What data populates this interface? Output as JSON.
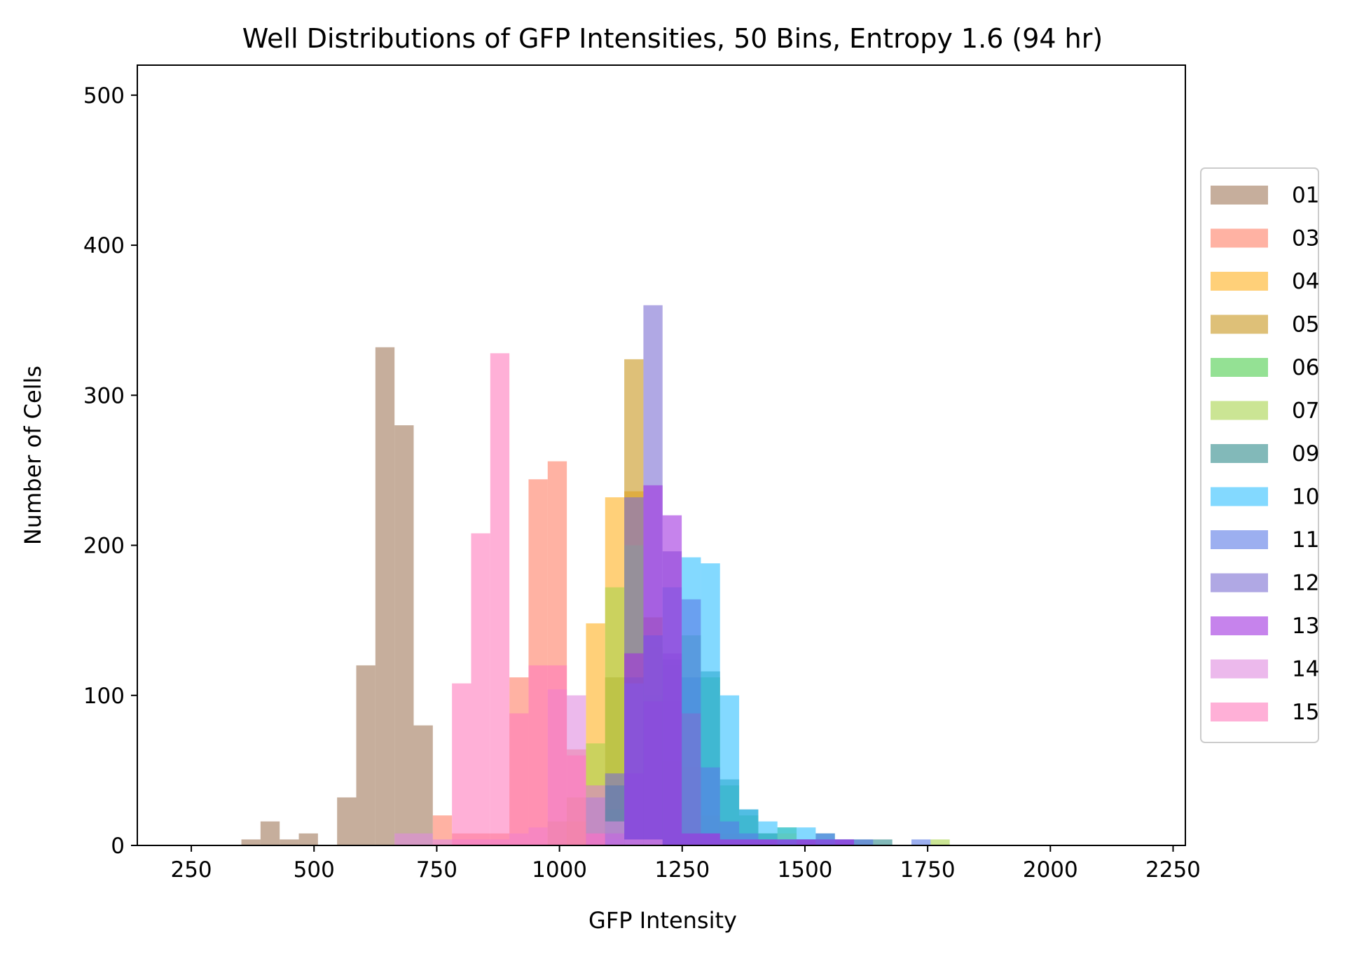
{
  "chart_data": {
    "type": "bar",
    "subtype": "overlaid-histogram",
    "title": "Well Distributions of GFP Intensities, 50 Bins, Entropy 1.6 (94 hr)",
    "xlabel": "GFP Intensity",
    "ylabel": "Number of Cells",
    "xlim": [
      140,
      2275
    ],
    "ylim": [
      0,
      520
    ],
    "xticks": [
      250,
      500,
      750,
      1000,
      1250,
      1500,
      1750,
      2000,
      2250
    ],
    "yticks": [
      0,
      100,
      200,
      300,
      400,
      500
    ],
    "bin_width": 39,
    "legend_position": "right",
    "opacity": 0.6,
    "series": [
      {
        "name": "01",
        "color": "#a0785a",
        "bins": [
          [
            352,
            4
          ],
          [
            391,
            16
          ],
          [
            430,
            4
          ],
          [
            469,
            8
          ],
          [
            547,
            32
          ],
          [
            586,
            120
          ],
          [
            625,
            332
          ],
          [
            664,
            280
          ],
          [
            703,
            80
          ]
        ]
      },
      {
        "name": "03",
        "color": "#ff7f66",
        "bins": [
          [
            742,
            20
          ],
          [
            781,
            8
          ],
          [
            820,
            8
          ],
          [
            859,
            8
          ],
          [
            898,
            112
          ],
          [
            937,
            244
          ],
          [
            976,
            256
          ],
          [
            1015,
            64
          ],
          [
            1054,
            8
          ]
        ]
      },
      {
        "name": "04",
        "color": "#ffb020",
        "bins": [
          [
            1015,
            16
          ],
          [
            1054,
            148
          ],
          [
            1093,
            232
          ],
          [
            1132,
            236
          ],
          [
            1171,
            104
          ],
          [
            1210,
            56
          ],
          [
            1249,
            8
          ]
        ]
      },
      {
        "name": "05",
        "color": "#c8961e",
        "bins": [
          [
            976,
            16
          ],
          [
            1015,
            32
          ],
          [
            1054,
            40
          ],
          [
            1093,
            112
          ],
          [
            1132,
            324
          ],
          [
            1171,
            152
          ],
          [
            1210,
            36
          ],
          [
            1249,
            4
          ]
        ]
      },
      {
        "name": "06",
        "color": "#4ccd4c",
        "bins": [
          [
            1054,
            8
          ],
          [
            1093,
            24
          ],
          [
            1132,
            40
          ],
          [
            1171,
            100
          ],
          [
            1210,
            120
          ],
          [
            1249,
            140
          ],
          [
            1288,
            112
          ],
          [
            1327,
            40
          ],
          [
            1366,
            20
          ],
          [
            1405,
            8
          ],
          [
            1444,
            12
          ],
          [
            1483,
            4
          ]
        ]
      },
      {
        "name": "07",
        "color": "#a8d44c",
        "bins": [
          [
            1054,
            68
          ],
          [
            1093,
            172
          ],
          [
            1132,
            200
          ],
          [
            1171,
            132
          ],
          [
            1210,
            96
          ],
          [
            1249,
            52
          ],
          [
            1288,
            20
          ],
          [
            1327,
            8
          ],
          [
            1366,
            4
          ],
          [
            1405,
            8
          ],
          [
            1444,
            8
          ],
          [
            1483,
            4
          ],
          [
            1522,
            8
          ],
          [
            1756,
            4
          ]
        ]
      },
      {
        "name": "09",
        "color": "#2e8b8b",
        "bins": [
          [
            1093,
            40
          ],
          [
            1132,
            112
          ],
          [
            1171,
            140
          ],
          [
            1210,
            124
          ],
          [
            1249,
            112
          ],
          [
            1288,
            116
          ],
          [
            1327,
            44
          ],
          [
            1366,
            24
          ],
          [
            1405,
            8
          ],
          [
            1444,
            4
          ],
          [
            1483,
            4
          ],
          [
            1522,
            4
          ],
          [
            1561,
            4
          ],
          [
            1600,
            4
          ],
          [
            1639,
            4
          ]
        ]
      },
      {
        "name": "10",
        "color": "#30c0ff",
        "bins": [
          [
            1132,
            108
          ],
          [
            1171,
            140
          ],
          [
            1210,
            172
          ],
          [
            1249,
            192
          ],
          [
            1288,
            188
          ],
          [
            1327,
            100
          ],
          [
            1366,
            24
          ],
          [
            1405,
            16
          ],
          [
            1444,
            12
          ],
          [
            1483,
            12
          ],
          [
            1522,
            8
          ],
          [
            1561,
            4
          ]
        ]
      },
      {
        "name": "11",
        "color": "#5a7ae6",
        "bins": [
          [
            1093,
            4
          ],
          [
            1132,
            48
          ],
          [
            1171,
            96
          ],
          [
            1210,
            128
          ],
          [
            1249,
            164
          ],
          [
            1288,
            52
          ],
          [
            1327,
            16
          ],
          [
            1366,
            8
          ],
          [
            1405,
            4
          ],
          [
            1444,
            4
          ],
          [
            1483,
            4
          ],
          [
            1522,
            8
          ],
          [
            1561,
            4
          ],
          [
            1600,
            4
          ],
          [
            1717,
            4
          ]
        ]
      },
      {
        "name": "12",
        "color": "#7b6ed2",
        "bins": [
          [
            1054,
            32
          ],
          [
            1093,
            48
          ],
          [
            1132,
            232
          ],
          [
            1171,
            360
          ],
          [
            1210,
            196
          ],
          [
            1249,
            88
          ],
          [
            1288,
            8
          ],
          [
            1327,
            4
          ],
          [
            1366,
            4
          ],
          [
            1405,
            4
          ],
          [
            1483,
            4
          ],
          [
            1561,
            4
          ]
        ]
      },
      {
        "name": "13",
        "color": "#a030e0",
        "bins": [
          [
            1054,
            8
          ],
          [
            1093,
            8
          ],
          [
            1132,
            128
          ],
          [
            1171,
            240
          ],
          [
            1210,
            220
          ],
          [
            1249,
            8
          ],
          [
            1288,
            8
          ],
          [
            1327,
            4
          ],
          [
            1366,
            4
          ],
          [
            1405,
            4
          ],
          [
            1444,
            4
          ],
          [
            1483,
            4
          ],
          [
            1522,
            4
          ],
          [
            1561,
            4
          ]
        ]
      },
      {
        "name": "14",
        "color": "#e08ae0",
        "bins": [
          [
            664,
            8
          ],
          [
            703,
            8
          ],
          [
            742,
            4
          ],
          [
            781,
            4
          ],
          [
            820,
            4
          ],
          [
            859,
            4
          ],
          [
            898,
            8
          ],
          [
            937,
            12
          ],
          [
            976,
            104
          ],
          [
            1015,
            100
          ],
          [
            1054,
            40
          ],
          [
            1093,
            16
          ],
          [
            1132,
            4
          ],
          [
            1171,
            4
          ]
        ]
      },
      {
        "name": "15",
        "color": "#ff7bbd",
        "bins": [
          [
            781,
            108
          ],
          [
            820,
            208
          ],
          [
            859,
            328
          ],
          [
            898,
            88
          ],
          [
            937,
            120
          ],
          [
            976,
            120
          ],
          [
            1015,
            60
          ],
          [
            1054,
            8
          ]
        ]
      }
    ]
  }
}
